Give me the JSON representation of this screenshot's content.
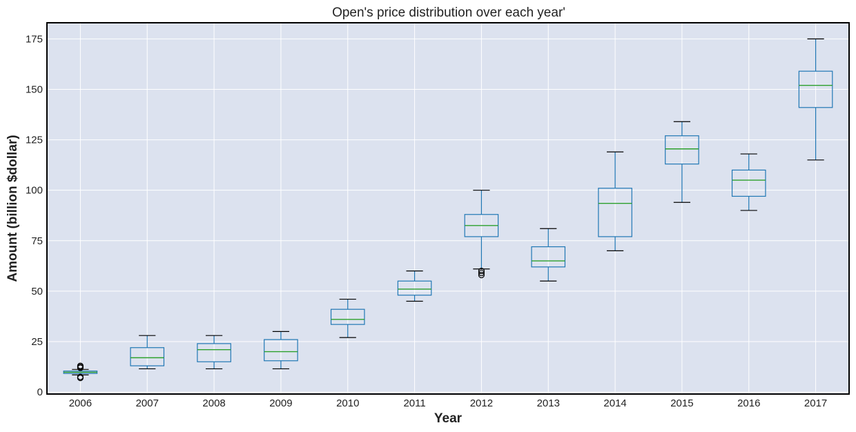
{
  "chart_data": {
    "type": "boxplot",
    "title": "Open's price distribution over each year'",
    "xlabel": "Year",
    "ylabel": "Amount (billion $dollar)",
    "ylim": [
      -1,
      183
    ],
    "yticks": [
      0,
      25,
      50,
      75,
      100,
      125,
      150,
      175
    ],
    "grid": true,
    "colors": {
      "plot_background": "#dce2ef",
      "grid": "#ffffff",
      "box": "#1f77b4",
      "median": "#2ca02c",
      "whisker_cap": "#000000",
      "outlier": "#000000",
      "frame": "#000000"
    },
    "categories": [
      "2006",
      "2007",
      "2008",
      "2009",
      "2010",
      "2011",
      "2012",
      "2013",
      "2014",
      "2015",
      "2016",
      "2017"
    ],
    "boxes": [
      {
        "year": "2006",
        "whisker_low": 8.5,
        "q1": 9.2,
        "median": 9.8,
        "q3": 10.4,
        "whisker_high": 11.2,
        "outliers": [
          7.0,
          7.5,
          12.0,
          12.5,
          13.0
        ]
      },
      {
        "year": "2007",
        "whisker_low": 11.5,
        "q1": 13.0,
        "median": 17.0,
        "q3": 22.0,
        "whisker_high": 28.0,
        "outliers": []
      },
      {
        "year": "2008",
        "whisker_low": 11.5,
        "q1": 15.0,
        "median": 21.0,
        "q3": 24.0,
        "whisker_high": 28.0,
        "outliers": []
      },
      {
        "year": "2009",
        "whisker_low": 11.5,
        "q1": 15.5,
        "median": 20.0,
        "q3": 26.0,
        "whisker_high": 30.0,
        "outliers": []
      },
      {
        "year": "2010",
        "whisker_low": 27.0,
        "q1": 33.5,
        "median": 36.0,
        "q3": 41.0,
        "whisker_high": 46.0,
        "outliers": []
      },
      {
        "year": "2011",
        "whisker_low": 45.0,
        "q1": 48.0,
        "median": 51.0,
        "q3": 55.0,
        "whisker_high": 60.0,
        "outliers": []
      },
      {
        "year": "2012",
        "whisker_low": 61.0,
        "q1": 77.0,
        "median": 82.5,
        "q3": 88.0,
        "whisker_high": 100.0,
        "outliers": [
          58.0,
          59.0,
          60.0
        ]
      },
      {
        "year": "2013",
        "whisker_low": 55.0,
        "q1": 62.0,
        "median": 65.0,
        "q3": 72.0,
        "whisker_high": 81.0,
        "outliers": []
      },
      {
        "year": "2014",
        "whisker_low": 70.0,
        "q1": 77.0,
        "median": 93.5,
        "q3": 101.0,
        "whisker_high": 119.0,
        "outliers": []
      },
      {
        "year": "2015",
        "whisker_low": 94.0,
        "q1": 113.0,
        "median": 120.5,
        "q3": 127.0,
        "whisker_high": 134.0,
        "outliers": []
      },
      {
        "year": "2016",
        "whisker_low": 90.0,
        "q1": 97.0,
        "median": 105.0,
        "q3": 110.0,
        "whisker_high": 118.0,
        "outliers": []
      },
      {
        "year": "2017",
        "whisker_low": 115.0,
        "q1": 141.0,
        "median": 152.0,
        "q3": 159.0,
        "whisker_high": 175.0,
        "outliers": []
      }
    ]
  }
}
